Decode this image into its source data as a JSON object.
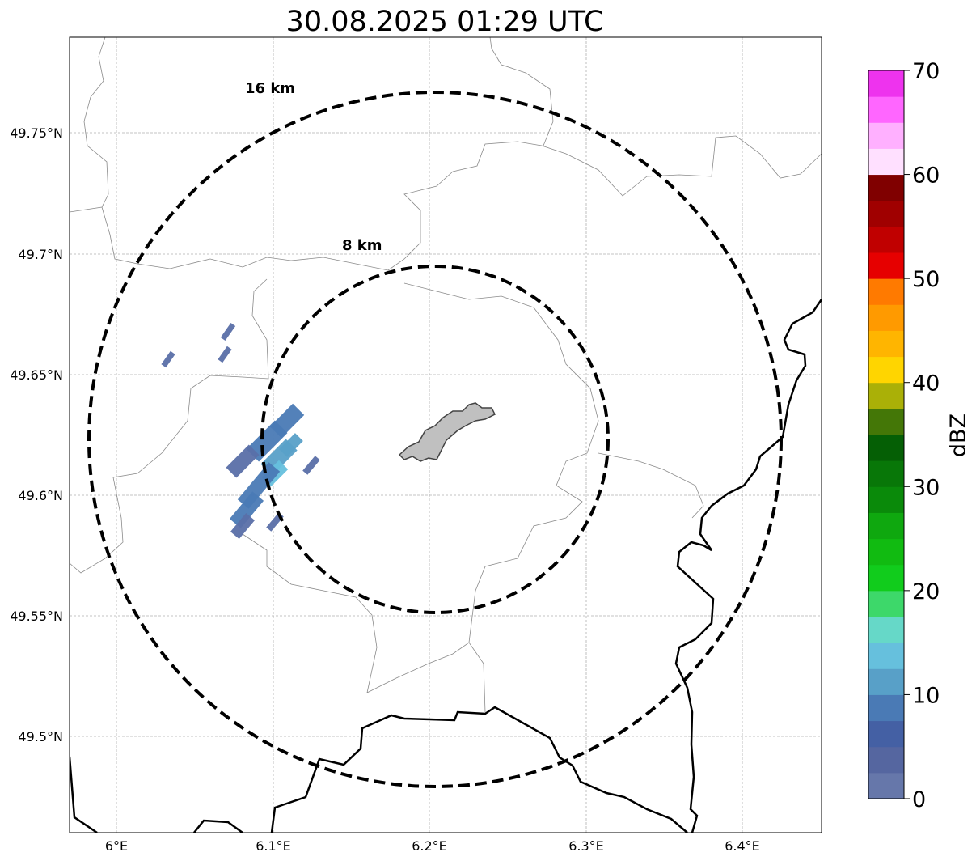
{
  "title": "30.08.2025 01:29 UTC",
  "map": {
    "x_ticks": [
      "6°E",
      "6.1°E",
      "6.2°E",
      "6.3°E",
      "6.4°E"
    ],
    "y_ticks": [
      "49.75°N",
      "49.7°N",
      "49.65°N",
      "49.6°N",
      "49.55°N",
      "49.5°N"
    ],
    "rings": [
      {
        "label": "16 km",
        "radius_km": 16
      },
      {
        "label": "8 km",
        "radius_km": 8
      }
    ],
    "center": {
      "lon": 6.2,
      "lat": 49.62
    },
    "city_fill": "#c0c0c0"
  },
  "colorbar": {
    "label": "dBZ",
    "ticks": [
      "0",
      "10",
      "20",
      "30",
      "40",
      "50",
      "60",
      "70"
    ],
    "min": 0,
    "max": 70,
    "colors": [
      "#6677aa",
      "#5566a0",
      "#4460a4",
      "#4a7ab5",
      "#58a0c8",
      "#66c0dd",
      "#66d8c8",
      "#3dd86a",
      "#11cc1c",
      "#11bb11",
      "#0fa80f",
      "#0a8a0a",
      "#087708",
      "#055f05",
      "#447707",
      "#aab007",
      "#ffd500",
      "#ffb500",
      "#ff9a00",
      "#ff7a00",
      "#e60000",
      "#c00000",
      "#a00000",
      "#800000",
      "#ffe0ff",
      "#ffb0ff",
      "#ff66ff",
      "#ee33ee"
    ]
  },
  "radar_colors": {
    "low": "#5a6fa8",
    "mid": "#4a7ab5",
    "high": "#58a0c8",
    "peak": "#66c0dd"
  }
}
